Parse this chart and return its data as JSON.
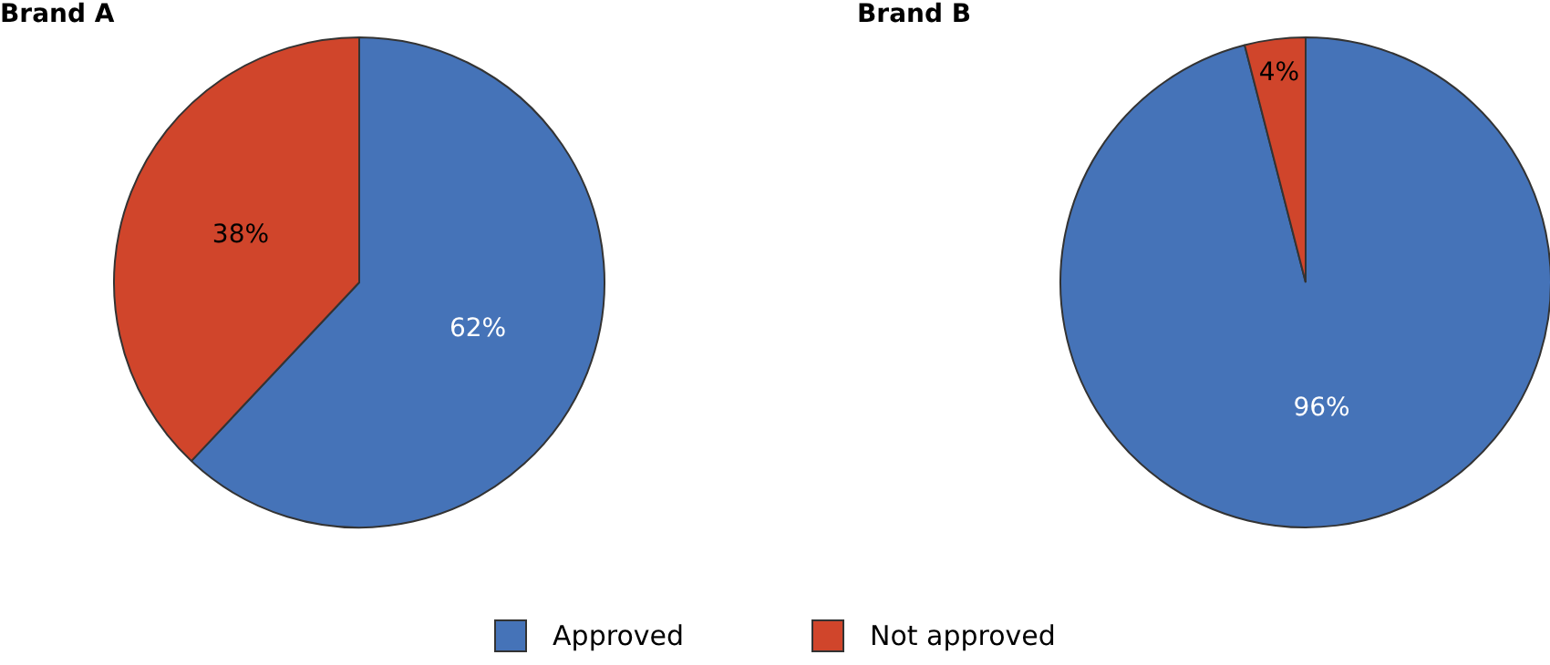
{
  "chart_data": [
    {
      "type": "pie",
      "title": "Brand A",
      "categories": [
        "Approved",
        "Not approved"
      ],
      "values": [
        62,
        38
      ],
      "colors": [
        "#4573b8",
        "#d0452b"
      ],
      "value_labels": [
        "62%",
        "38%"
      ],
      "legend": "bottom"
    },
    {
      "type": "pie",
      "title": "Brand B",
      "categories": [
        null,
        null
      ],
      "values": [
        96,
        4
      ],
      "colors": [
        "#4573b8",
        "#d0452b"
      ],
      "value_labels": [
        "96%",
        "4%"
      ]
    }
  ]
}
